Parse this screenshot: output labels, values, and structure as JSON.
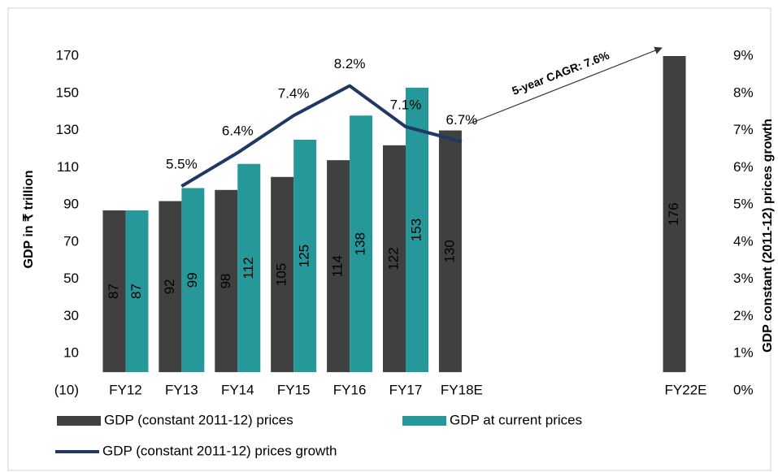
{
  "chart_data": {
    "type": "bar",
    "y_axis_label": "GDP in ₹ trillion",
    "y2_axis_label": "GDP constant (2011-12) prices growth",
    "annotation": "5-year CAGR: 7.6%",
    "categories": [
      "FY12",
      "FY13",
      "FY14",
      "FY15",
      "FY16",
      "FY17",
      "FY18E",
      null,
      null,
      null,
      "FY22E"
    ],
    "series": [
      {
        "name": "GDP (constant 2011-12) prices",
        "type": "bar",
        "color": "#404040",
        "label_color": "#ffffff",
        "values": [
          87,
          92,
          98,
          105,
          114,
          122,
          130,
          null,
          null,
          null,
          176
        ]
      },
      {
        "name": "GDP at current prices",
        "type": "bar",
        "color": "#27989a",
        "label_color": "#1a1a1a",
        "values": [
          87,
          99,
          112,
          125,
          138,
          153,
          null,
          null,
          null,
          null,
          null
        ]
      },
      {
        "name": "GDP (constant 2011-12) prices growth",
        "type": "line",
        "axis": "y2",
        "color": "#1f3864",
        "values": [
          null,
          5.5,
          6.4,
          7.4,
          8.2,
          7.1,
          6.7,
          null,
          null,
          null,
          null
        ],
        "value_labels": [
          null,
          "5.5%",
          "6.4%",
          "7.4%",
          "8.2%",
          "7.1%",
          "6.7%",
          null,
          null,
          null,
          null
        ]
      }
    ],
    "ylim": [
      -10,
      170
    ],
    "yticks": [
      {
        "value": -10,
        "label": "(10)"
      },
      10,
      30,
      50,
      70,
      90,
      110,
      130,
      150,
      170
    ],
    "y2lim": [
      0,
      9
    ],
    "y2ticks": [
      {
        "value": 0,
        "label": "0%"
      },
      {
        "value": 1,
        "label": "1%"
      },
      {
        "value": 2,
        "label": "2%"
      },
      {
        "value": 3,
        "label": "3%"
      },
      {
        "value": 4,
        "label": "4%"
      },
      {
        "value": 5,
        "label": "5%"
      },
      {
        "value": 6,
        "label": "6%"
      },
      {
        "value": 7,
        "label": "7%"
      },
      {
        "value": 8,
        "label": "8%"
      },
      {
        "value": 9,
        "label": "9%"
      }
    ],
    "grid": false
  }
}
